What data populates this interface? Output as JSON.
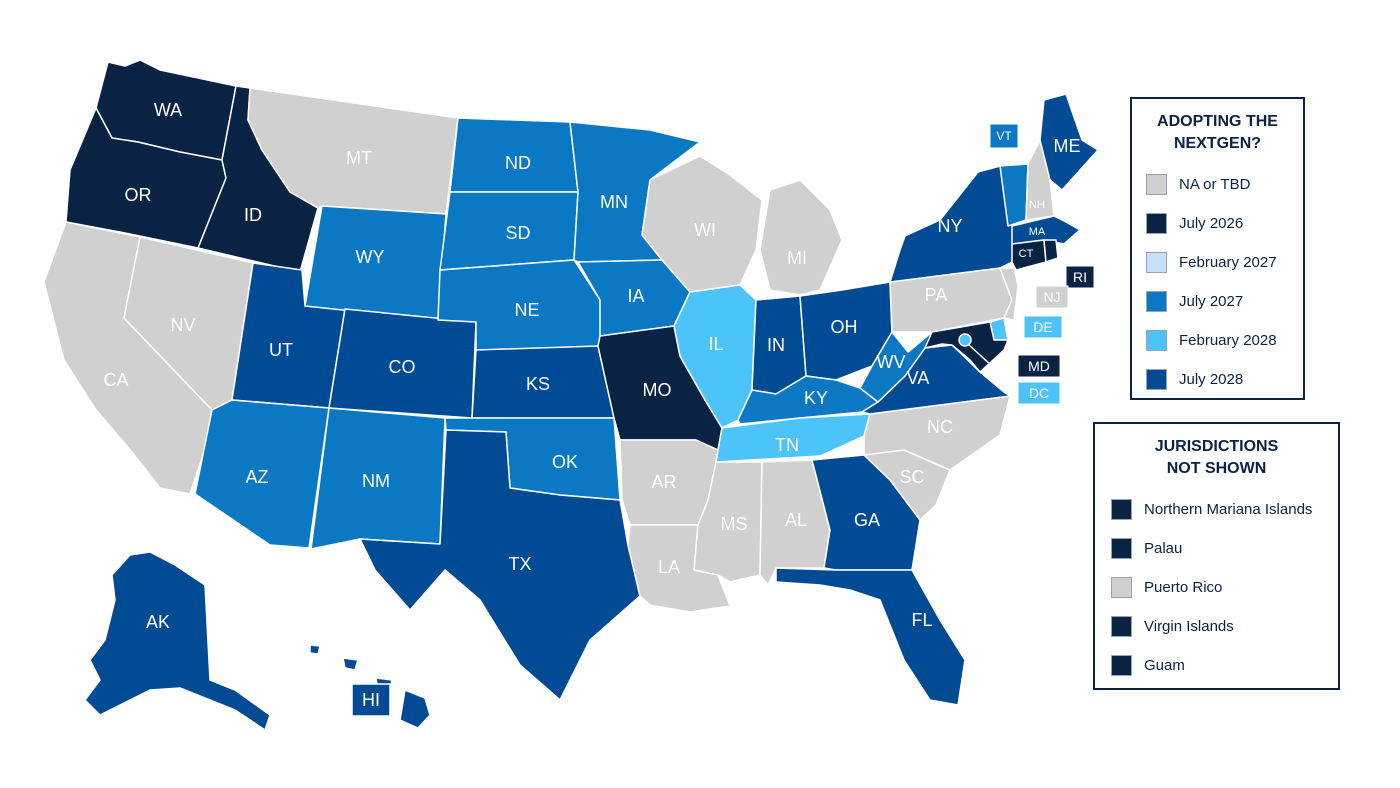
{
  "colors": {
    "na_tbd": "#d0d0d0",
    "jul2026": "#0a2244",
    "feb2027": "#c6e0fb",
    "jul2027": "#0a78c3",
    "feb2028": "#4cc3f9",
    "jul2028": "#004b93",
    "border": "#ffffff",
    "label": "#ffffff"
  },
  "legend": {
    "title": "ADOPTING THE\nNEXTGEN?",
    "items": [
      {
        "label": "NA or TBD",
        "color": "#d0d0d0"
      },
      {
        "label": "July 2026",
        "color": "#0a2244"
      },
      {
        "label": "February 2027",
        "color": "#c6e0fb"
      },
      {
        "label": "July 2027",
        "color": "#0a78c3"
      },
      {
        "label": "February 2028",
        "color": "#4cc3f9"
      },
      {
        "label": "July 2028",
        "color": "#004b93"
      }
    ]
  },
  "jurisdictions": {
    "title": "JURISDICTIONS\nNOT SHOWN",
    "items": [
      {
        "label": "Northern Mariana Islands",
        "color": "#0a2244"
      },
      {
        "label": "Palau",
        "color": "#0a2244"
      },
      {
        "label": "Puerto Rico",
        "color": "#d0d0d0"
      },
      {
        "label": "Virgin Islands",
        "color": "#0a2244"
      },
      {
        "label": "Guam",
        "color": "#0a2244"
      }
    ]
  },
  "states": {
    "WA": "jul2026",
    "OR": "jul2026",
    "ID": "jul2026",
    "MO": "jul2026",
    "CT": "jul2026",
    "MD": "jul2026",
    "RI": "jul2026",
    "MT": "na_tbd",
    "CA": "na_tbd",
    "NV": "na_tbd",
    "WI": "na_tbd",
    "MI": "na_tbd",
    "PA": "na_tbd",
    "NC": "na_tbd",
    "SC": "na_tbd",
    "AR": "na_tbd",
    "MS": "na_tbd",
    "AL": "na_tbd",
    "LA": "na_tbd",
    "NH": "na_tbd",
    "NJ": "na_tbd",
    "ND": "jul2027",
    "SD": "jul2027",
    "MN": "jul2027",
    "WY": "jul2027",
    "NE": "jul2027",
    "IA": "jul2027",
    "AZ": "jul2027",
    "NM": "jul2027",
    "OK": "jul2027",
    "KY": "jul2027",
    "WV": "jul2027",
    "VT": "jul2027",
    "IL": "feb2028",
    "TN": "feb2028",
    "DE": "feb2028",
    "DC": "feb2028",
    "UT": "jul2028",
    "CO": "jul2028",
    "KS": "jul2028",
    "TX": "jul2028",
    "IN": "jul2028",
    "OH": "jul2028",
    "VA": "jul2028",
    "GA": "jul2028",
    "FL": "jul2028",
    "NY": "jul2028",
    "ME": "jul2028",
    "MA": "jul2028",
    "AK": "jul2028",
    "HI": "jul2028"
  }
}
